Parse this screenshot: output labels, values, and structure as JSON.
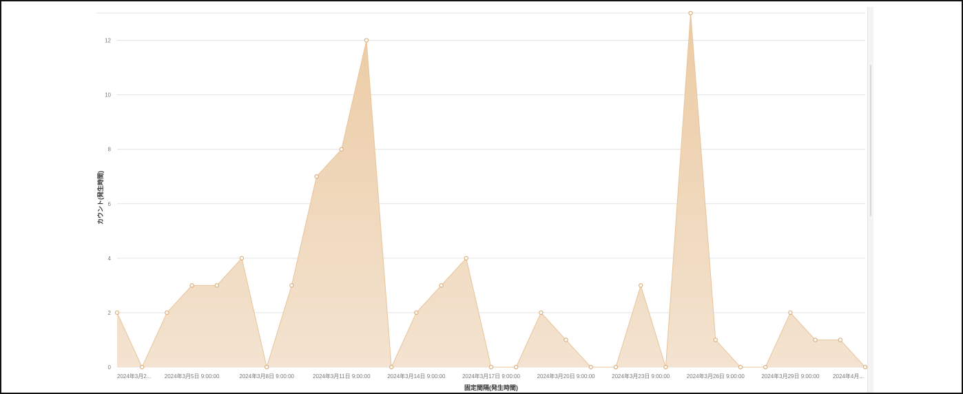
{
  "chart_data": {
    "type": "area",
    "xlabel": "固定間隔(発生時間)",
    "ylabel": "カウント(発生時間)",
    "ylim": [
      0,
      13
    ],
    "y_ticks": [
      0,
      2,
      4,
      6,
      8,
      10,
      12
    ],
    "x_tick_labels": [
      "2024年3月2...",
      "2024年3月5日 9:00:00",
      "2024年3月8日 9:00:00",
      "2024年3月11日 9:00:00",
      "2024年3月14日 9:00:00",
      "2024年3月17日 9:00:00",
      "2024年3月20日 9:00:00",
      "2024年3月23日 9:00:00",
      "2024年3月26日 9:00:00",
      "2024年3月29日 9:00:00",
      "2024年4月..."
    ],
    "x_tick_positions": [
      0,
      3,
      6,
      9,
      12,
      15,
      18,
      21,
      24,
      27,
      30
    ],
    "values": [
      2,
      0,
      2,
      3,
      3,
      4,
      0,
      3,
      7,
      8,
      12,
      0,
      2,
      3,
      4,
      0,
      0,
      2,
      1,
      0,
      0,
      3,
      0,
      13,
      1,
      0,
      0,
      2,
      1,
      1,
      0
    ],
    "grid": true,
    "legend": "none",
    "colors": {
      "fill_top": "#eccba4",
      "fill_bottom": "#f3e3d0",
      "line": "#e8c49a",
      "marker_stroke": "#dcae7c",
      "marker_fill": "#ffffff"
    }
  }
}
